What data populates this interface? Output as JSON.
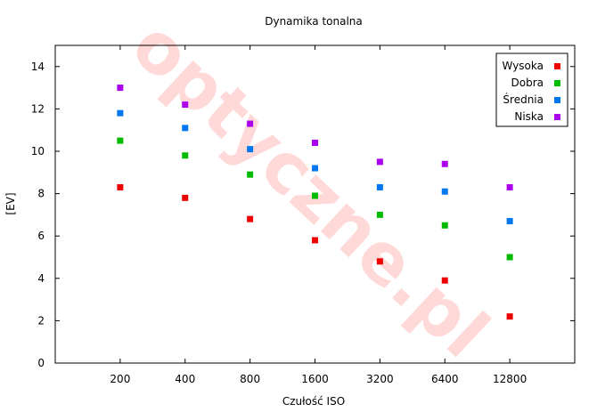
{
  "chart_data": {
    "type": "scatter",
    "title": "Dynamika tonalna",
    "xlabel": "Czułość ISO",
    "ylabel": "[EV]",
    "categories": [
      "200",
      "400",
      "800",
      "1600",
      "3200",
      "6400",
      "12800"
    ],
    "ylim": [
      0,
      15
    ],
    "yticks": [
      "0",
      "2",
      "4",
      "6",
      "8",
      "10",
      "12",
      "14"
    ],
    "grid": false,
    "legend_position": "top-right",
    "watermark": "optyczne.pl",
    "series": [
      {
        "name": "Wysoka",
        "color": "#ee0000",
        "values": [
          8.3,
          7.8,
          6.8,
          5.8,
          4.8,
          3.9,
          2.2
        ]
      },
      {
        "name": "Dobra",
        "color": "#00bb00",
        "values": [
          10.5,
          9.8,
          8.9,
          7.9,
          7.0,
          6.5,
          5.0
        ]
      },
      {
        "name": "Średnia",
        "color": "#0077ee",
        "values": [
          11.8,
          11.1,
          10.1,
          9.2,
          8.3,
          8.1,
          6.7
        ]
      },
      {
        "name": "Niska",
        "color": "#aa00ee",
        "values": [
          13.0,
          12.2,
          11.3,
          10.4,
          9.5,
          9.4,
          8.3
        ]
      }
    ]
  }
}
